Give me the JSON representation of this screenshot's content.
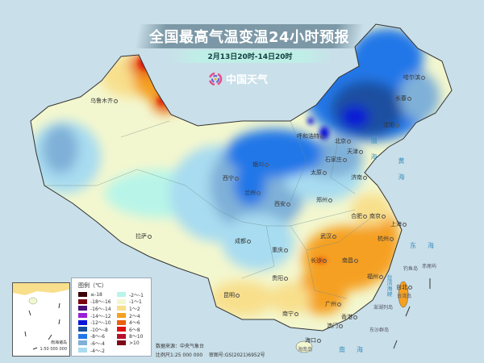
{
  "header": {
    "title": "全国最高气温变温24小时预报",
    "subtitle": "2月13日20时-14日20时",
    "brand": "中国天气"
  },
  "map": {
    "cities": [
      "乌鲁木齐",
      "拉萨",
      "西宁",
      "兰州",
      "银川",
      "西安",
      "成都",
      "重庆",
      "贵阳",
      "昆明",
      "南宁",
      "广州",
      "香港",
      "澳门",
      "长沙",
      "南昌",
      "武汉",
      "福州",
      "台北",
      "杭州",
      "上海",
      "南京",
      "合肥",
      "郑州",
      "济南",
      "石家庄",
      "太原",
      "北京",
      "天津",
      "沈阳",
      "长春",
      "哈尔滨",
      "呼和浩特",
      "海口"
    ],
    "seas": [
      "渤海",
      "黄海",
      "东海",
      "南海",
      "台湾海峡"
    ],
    "islands": [
      "钓鱼岛",
      "赤尾屿",
      "台湾岛",
      "澎湖列岛",
      "东沙群岛",
      "海南岛"
    ]
  },
  "legend": {
    "title": "图例（℃）",
    "items": [
      {
        "label": "≤-18",
        "color": "#3b0008"
      },
      {
        "label": "-18～-16",
        "color": "#7a0010"
      },
      {
        "label": "-16～-14",
        "color": "#4a0f7a"
      },
      {
        "label": "-14～-12",
        "color": "#9b1fd6"
      },
      {
        "label": "-12～-10",
        "color": "#0a14d8"
      },
      {
        "label": "-10～-8",
        "color": "#1a4fa0"
      },
      {
        "label": "-8～-6",
        "color": "#2277e8"
      },
      {
        "label": "-6～-4",
        "color": "#7fb0d8"
      },
      {
        "label": "-4～-2",
        "color": "#a8dcf0"
      },
      {
        "label": "-2～-1",
        "color": "#b8f5e8"
      },
      {
        "label": "-1～1",
        "color": "#f3f7cf"
      },
      {
        "label": "1～2",
        "color": "#f8df8c"
      },
      {
        "label": "2～4",
        "color": "#f5a020"
      },
      {
        "label": "4～6",
        "color": "#e86010"
      },
      {
        "label": "6～8",
        "color": "#e01010"
      },
      {
        "label": "8～10",
        "color": "#b8102a"
      },
      {
        "label": ">10",
        "color": "#800818"
      }
    ]
  },
  "footer": {
    "source": "数据来源：中央气象台",
    "scale": "比例尺1:25 000 000    审图号:GS(2021)6952号"
  },
  "inset": {
    "label": "南海诸岛",
    "scale": "1:50 000 000"
  }
}
